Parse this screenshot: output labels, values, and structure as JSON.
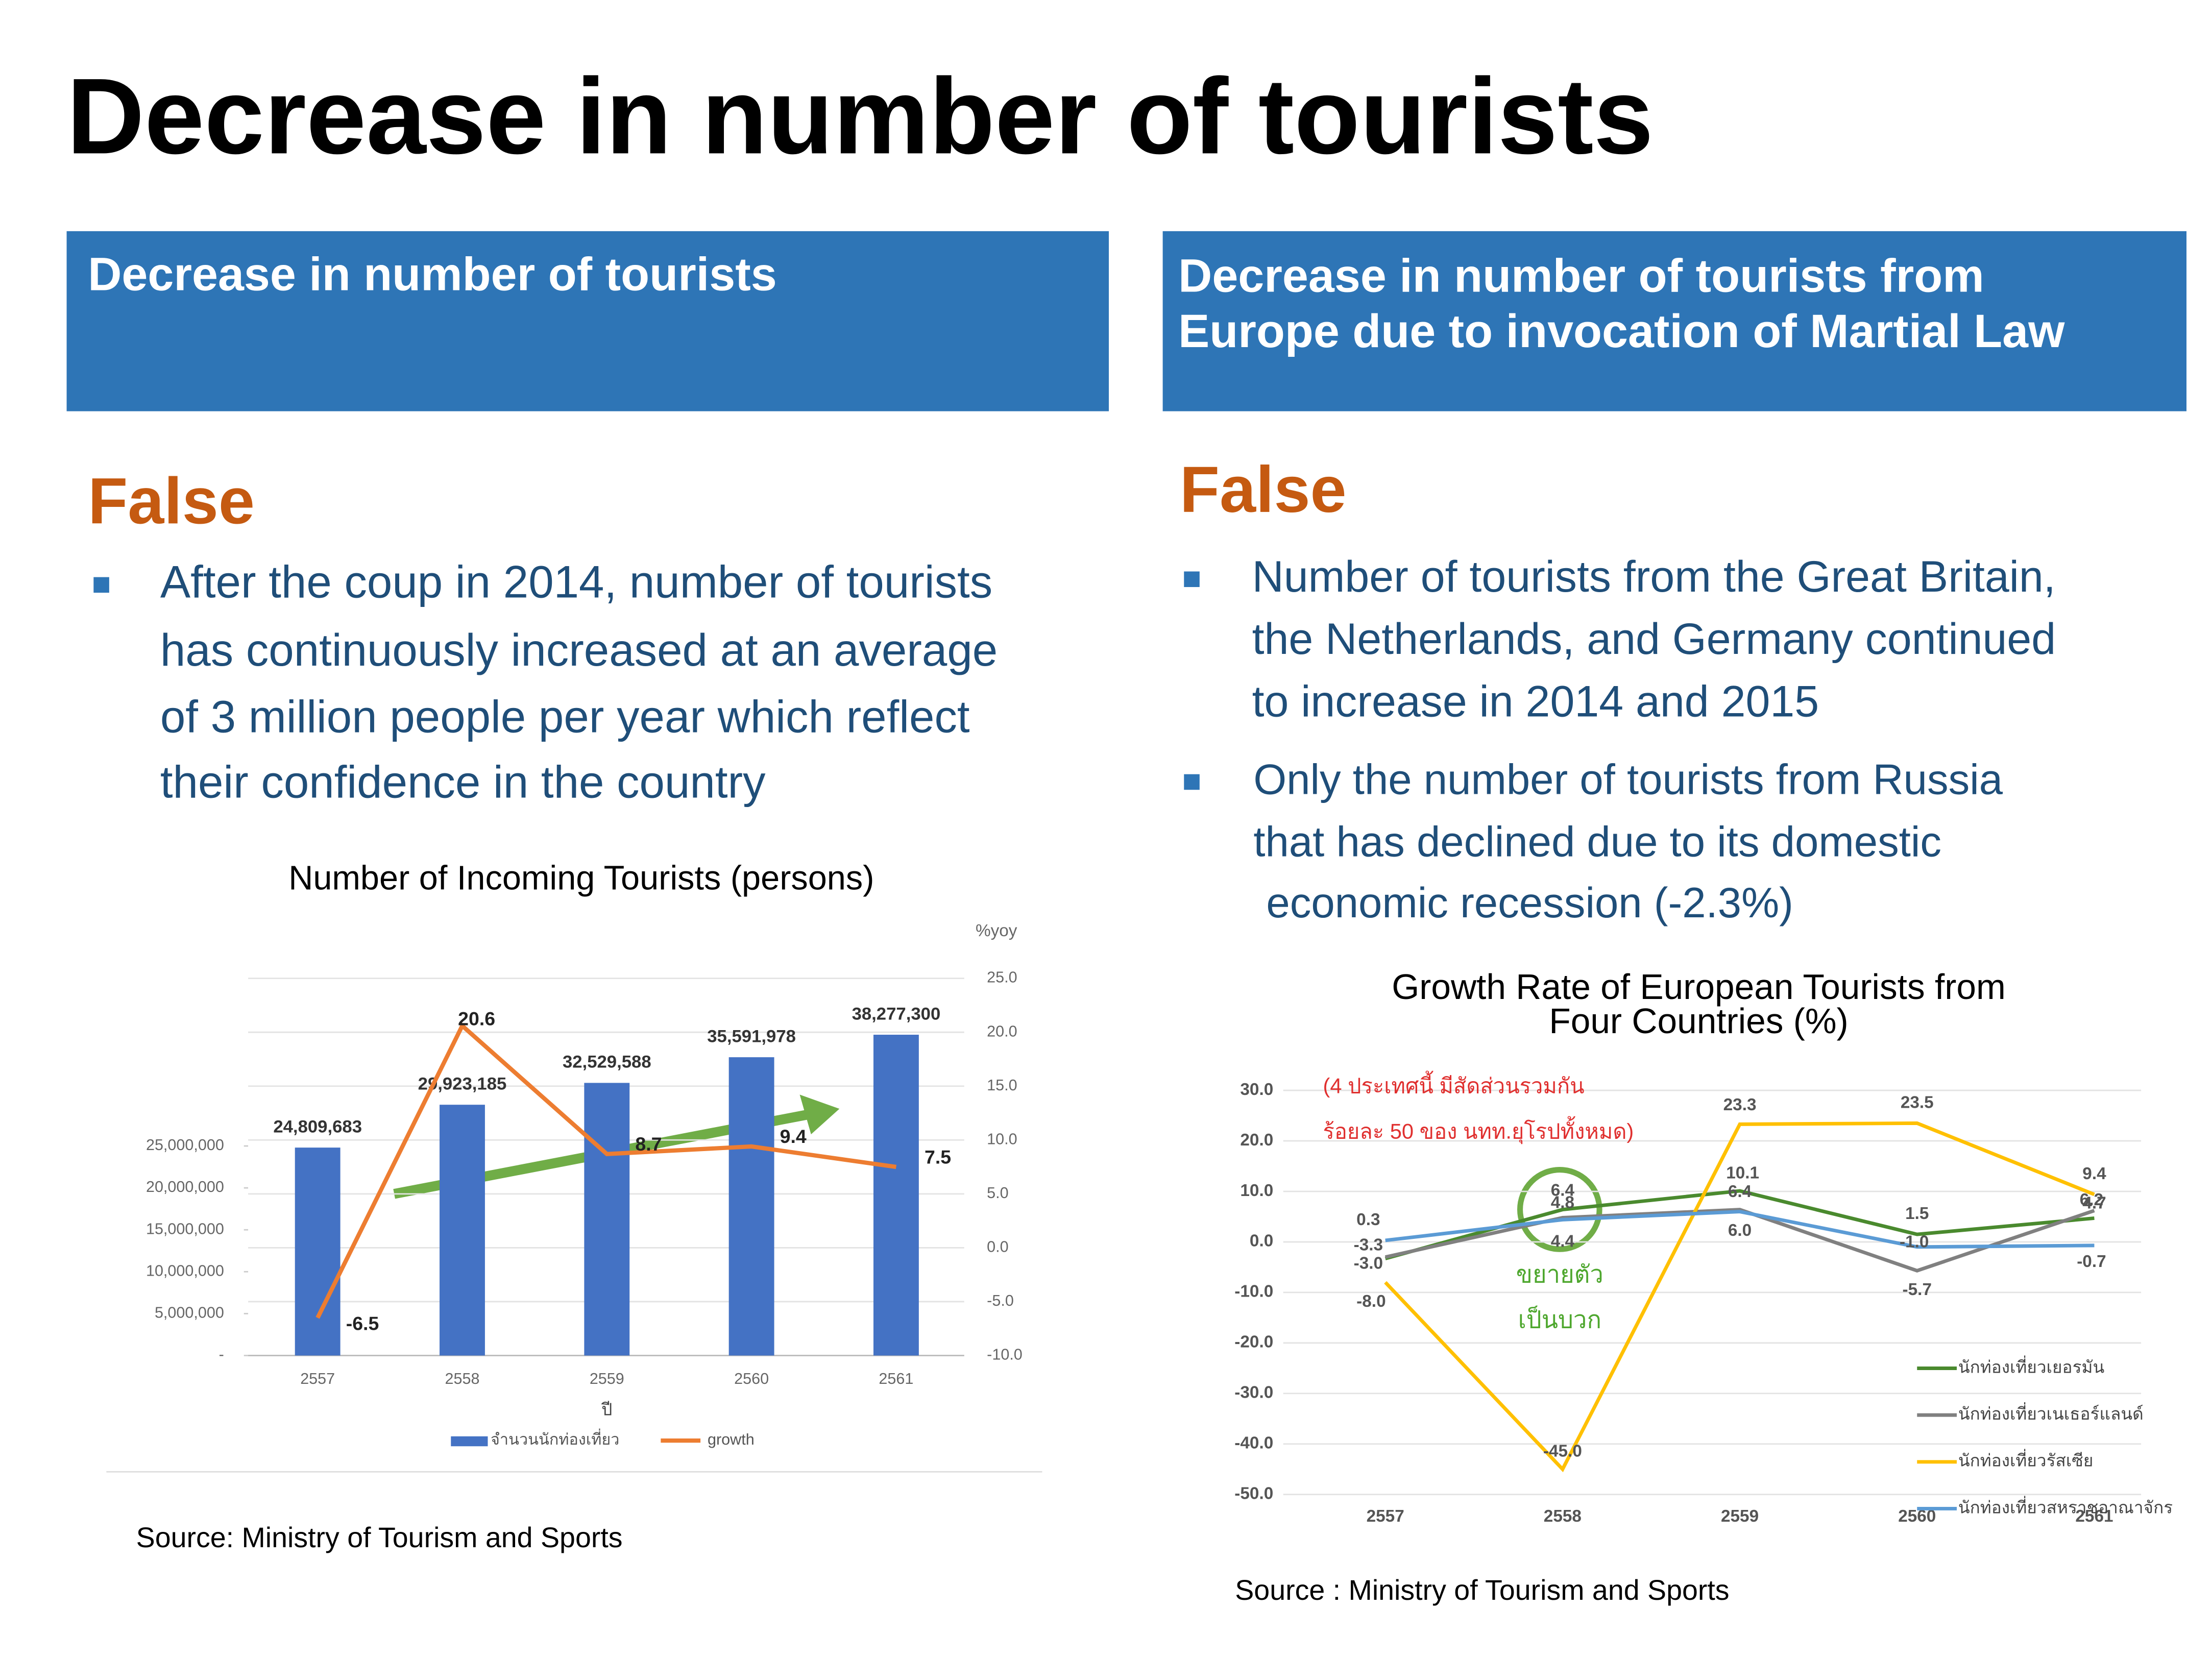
{
  "title": "Decrease in number of tourists",
  "panels": [
    {
      "header": [
        "Decrease in number of tourists"
      ],
      "verdict": "False",
      "bullets": [
        [
          "After the coup in 2014, number of tourists",
          "has continuously increased at an average",
          "of 3 million people per year which reflect",
          "their confidence in the country"
        ]
      ],
      "source": "Source: Ministry of Tourism and Sports"
    },
    {
      "header": [
        "Decrease in number of tourists from",
        "Europe due to invocation of Martial Law"
      ],
      "verdict": "False",
      "bullets": [
        [
          "Number of tourists from the Great Britain,",
          "the Netherlands, and Germany continued",
          "to increase in 2014 and 2015"
        ],
        [
          "Only the number of tourists from Russia",
          "that has declined due to its domestic",
          "economic recession (-2.3%)"
        ]
      ],
      "source": "Source : Ministry of Tourism and Sports"
    }
  ],
  "chart_data": [
    {
      "type": "bar_line",
      "title": "Number of Incoming Tourists (persons)",
      "x_label": "ปี",
      "y2_label": "%yoy",
      "categories": [
        "2557",
        "2558",
        "2559",
        "2560",
        "2561"
      ],
      "series": [
        {
          "name": "จำนวนนักท่องเที่ยว",
          "type": "bar",
          "color": "#4472c4",
          "values": [
            24809683,
            29923185,
            32529588,
            35591978,
            38277300
          ],
          "value_labels": [
            "24,809,683",
            "29,923,185",
            "32,529,588",
            "35,591,978",
            "38,277,300"
          ]
        },
        {
          "name": "growth",
          "type": "line",
          "axis": "y2",
          "color": "#ed7d31",
          "values": [
            -6.5,
            20.6,
            8.7,
            9.4,
            7.5
          ]
        }
      ],
      "ylim": [
        0,
        45000000
      ],
      "yticks": [
        {
          "value": 0,
          "label": "-"
        },
        {
          "value": 5000000,
          "label": "5,000,000"
        },
        {
          "value": 10000000,
          "label": "10,000,000"
        },
        {
          "value": 15000000,
          "label": "15,000,000"
        },
        {
          "value": 20000000,
          "label": "20,000,000"
        },
        {
          "value": 25000000,
          "label": "25,000,000"
        }
      ],
      "y2lim": [
        -10,
        25
      ],
      "y2ticks": [
        {
          "value": -10,
          "label": "-10.0"
        },
        {
          "value": -5,
          "label": "-5.0"
        },
        {
          "value": 0,
          "label": "0.0"
        },
        {
          "value": 5,
          "label": "5.0"
        },
        {
          "value": 10,
          "label": "10.0"
        },
        {
          "value": 15,
          "label": "15.0"
        },
        {
          "value": 20,
          "label": "20.0"
        },
        {
          "value": 25,
          "label": "25.0"
        }
      ],
      "grid": true,
      "legend": "bottom"
    },
    {
      "type": "line",
      "title": [
        "Growth Rate of European Tourists from",
        "Four Countries (%)"
      ],
      "annotations": [
        "(4 ประเทศนี้ มีสัดส่วนรวมกัน",
        "ร้อยละ 50 ของ นทท.ยุโรปทั้งหมด)",
        "ขยายตัว",
        "เป็นบวก"
      ],
      "categories": [
        "2557",
        "2558",
        "2559",
        "2560",
        "2561"
      ],
      "series": [
        {
          "name": "นักท่องเที่ยวเยอรมัน",
          "color": "#4a8a2e",
          "values": [
            -3.3,
            6.4,
            10.1,
            1.5,
            4.7
          ],
          "value_labels": [
            "-3.3",
            "6.4",
            "10.1",
            "1.5",
            "4.7"
          ]
        },
        {
          "name": "นักท่องเที่ยวเนเธอร์แลนด์",
          "color": "#808080",
          "values": [
            -3.0,
            4.8,
            6.4,
            -5.7,
            6.2
          ],
          "value_labels": [
            "-3.0",
            "4.8",
            "6.4",
            "-5.7",
            "6.2"
          ]
        },
        {
          "name": "นักท่องเที่ยวรัสเซีย",
          "color": "#ffc000",
          "values": [
            -8.0,
            -45.0,
            23.3,
            23.5,
            9.4
          ],
          "value_labels": [
            "-8.0",
            "-45.0",
            "23.3",
            "23.5",
            "9.4"
          ]
        },
        {
          "name": "นักท่องเที่ยวสหราชอาณาจักร",
          "color": "#5b9bd5",
          "values": [
            0.3,
            4.4,
            6.0,
            -1.0,
            -0.7
          ],
          "value_labels": [
            "0.3",
            "4.4",
            "6.0",
            "-1.0",
            "-0.7"
          ]
        }
      ],
      "ylim": [
        -50,
        30
      ],
      "yticks": [
        {
          "value": -50,
          "label": "-50.0"
        },
        {
          "value": -40,
          "label": "-40.0"
        },
        {
          "value": -30,
          "label": "-30.0"
        },
        {
          "value": -20,
          "label": "-20.0"
        },
        {
          "value": -10,
          "label": "-10.0"
        },
        {
          "value": 0,
          "label": "0.0"
        },
        {
          "value": 10,
          "label": "10.0"
        },
        {
          "value": 20,
          "label": "20.0"
        },
        {
          "value": 30,
          "label": "30.0"
        }
      ],
      "grid": true,
      "legend": "bottom-right"
    }
  ]
}
